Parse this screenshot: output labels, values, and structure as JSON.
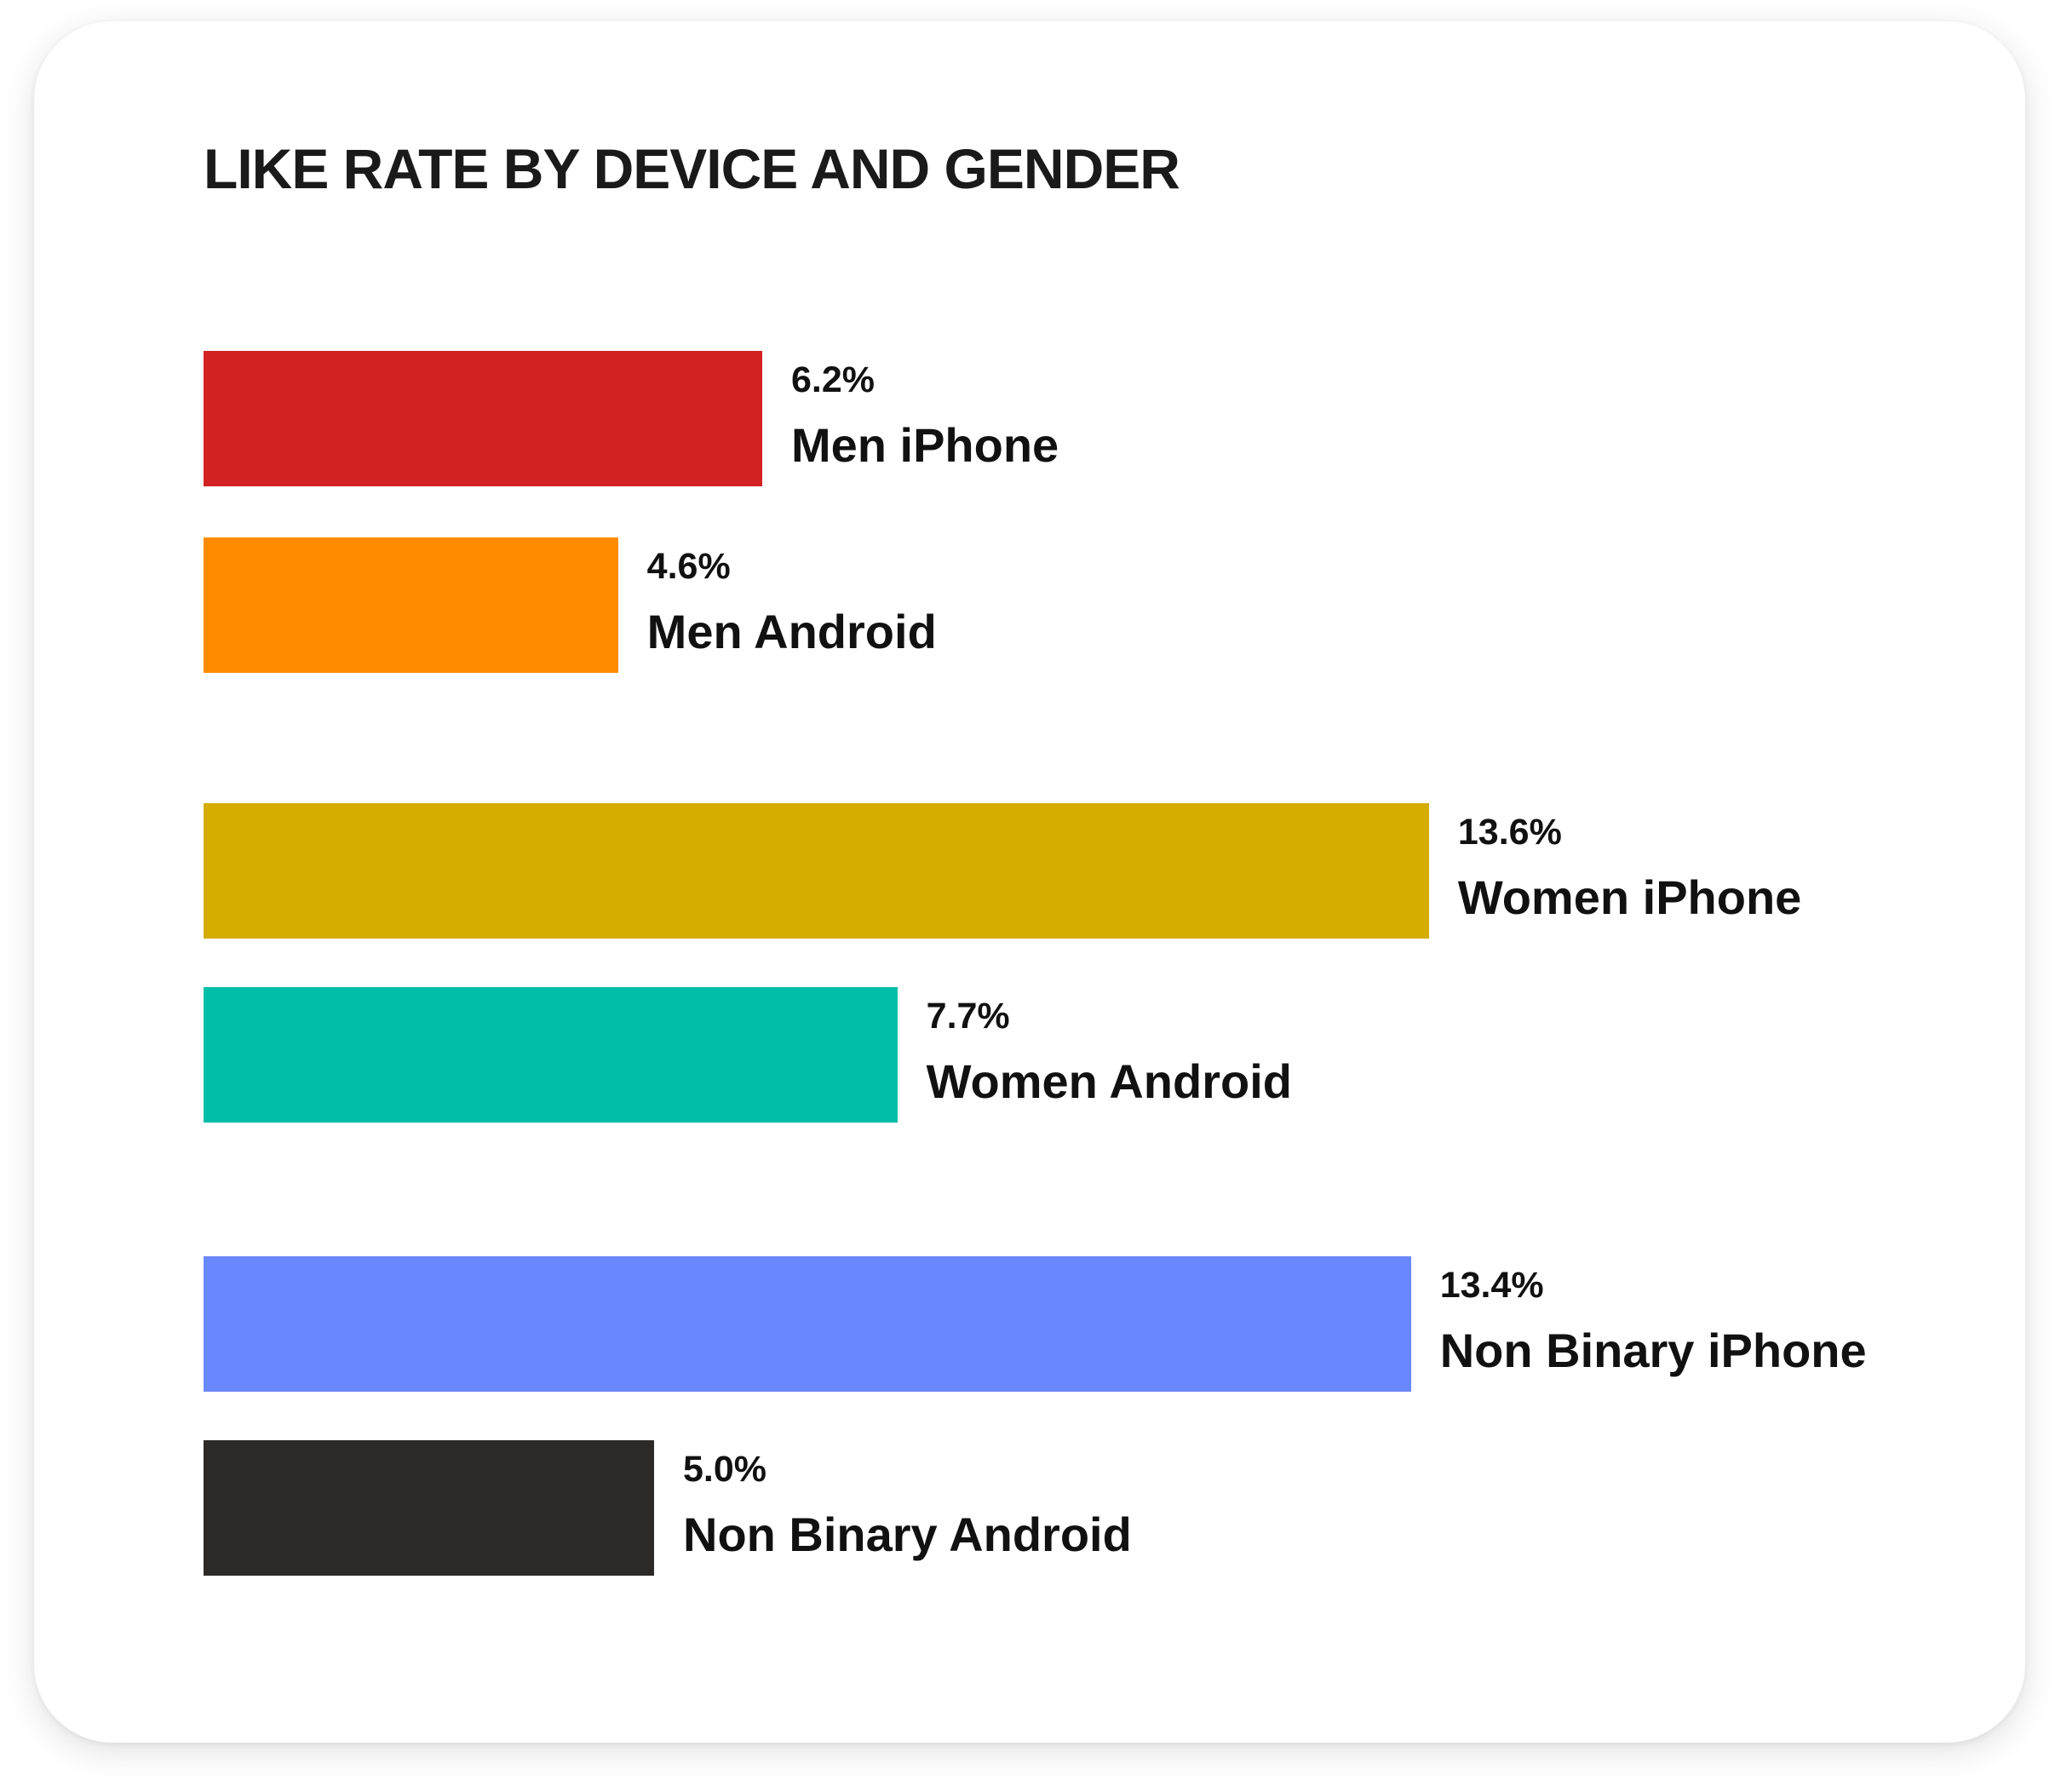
{
  "chart_data": {
    "type": "bar",
    "orientation": "horizontal",
    "title": "LIKE RATE BY DEVICE AND GENDER",
    "categories": [
      "Men iPhone",
      "Men Android",
      "Women iPhone",
      "Women Android",
      "Non Binary iPhone",
      "Non Binary Android"
    ],
    "values": [
      6.2,
      4.6,
      13.6,
      7.7,
      13.4,
      5.0
    ],
    "value_labels": [
      "6.2%",
      "4.6%",
      "13.6%",
      "7.7%",
      "13.4%",
      "5.0%"
    ],
    "colors": [
      "#d22222",
      "#ff8c00",
      "#d4ad00",
      "#00bea8",
      "#6a88fd",
      "#2d2926"
    ],
    "unit": "%",
    "grid": false,
    "axes_visible": false
  }
}
